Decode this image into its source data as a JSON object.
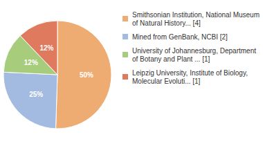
{
  "chart_data": {
    "type": "pie",
    "categories": [
      "Smithsonian Institution, National Museum of Natural History... [4]",
      "Mined from GenBank, NCBI [2]",
      "University of Johannesburg, Department of Botany and Plant ... [1]",
      "Leipzig University, Institute of Biology, Molecular Evoluti... [1]"
    ],
    "values": [
      50,
      25,
      12,
      12
    ],
    "value_labels": [
      "50%",
      "25%",
      "12%",
      "12%"
    ],
    "colors": [
      "#efac72",
      "#a3bbe0",
      "#a6cc7c",
      "#e07a5e"
    ],
    "data_labels": true,
    "legend": "right"
  }
}
